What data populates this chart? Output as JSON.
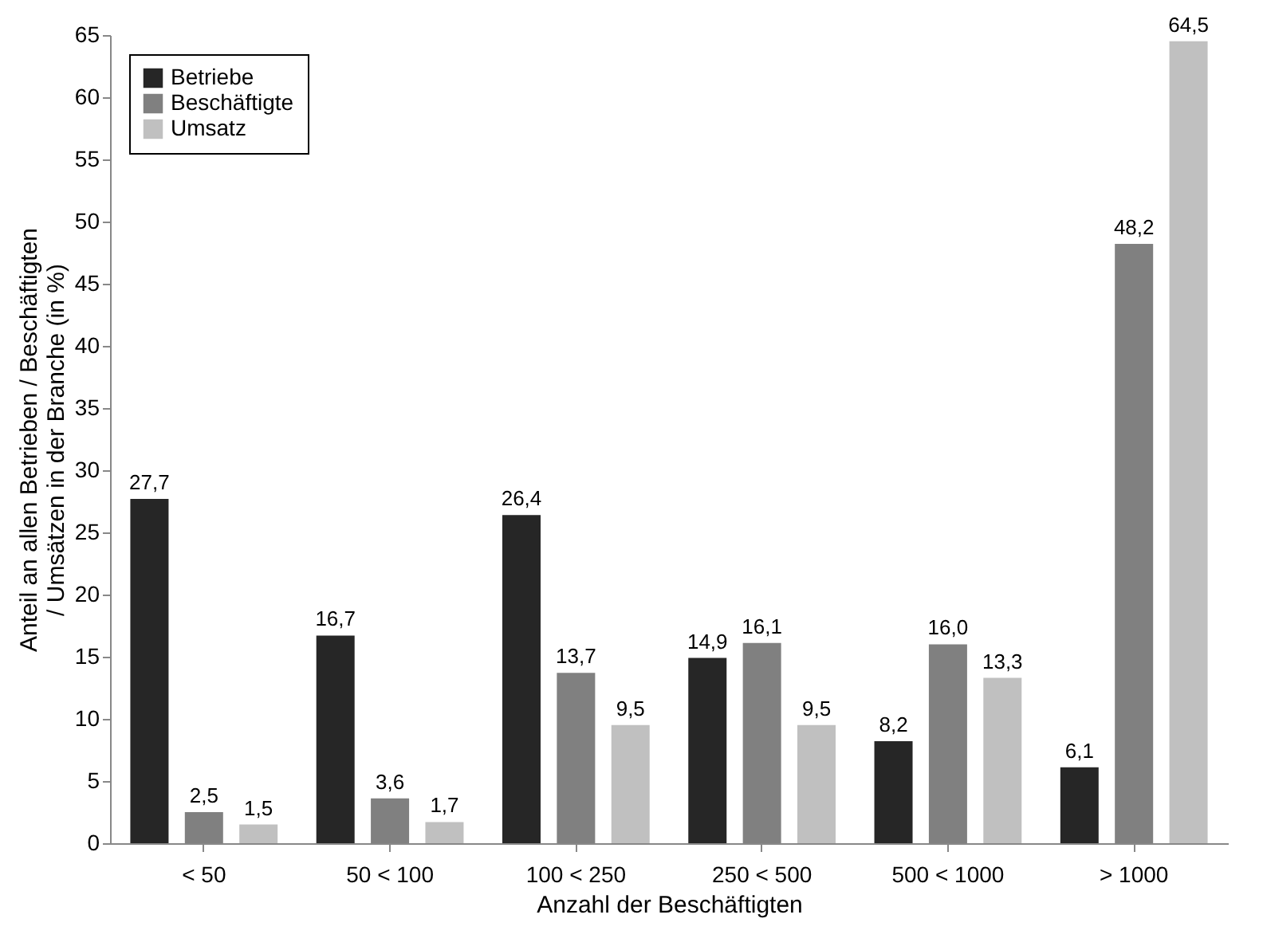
{
  "chart_data": {
    "type": "bar",
    "xlabel": "Anzahl der Beschäftigten",
    "ylabel": "Anteil an allen Betrieben / Beschäftigten / Umsätzen in der Branche (in %)",
    "categories": [
      "< 50",
      "50 < 100",
      "100 < 250",
      "250 < 500",
      "500 < 1000",
      "> 1000"
    ],
    "series": [
      {
        "name": "Betriebe",
        "color": "#262626",
        "values": [
          27.7,
          16.7,
          26.4,
          14.9,
          8.2,
          6.1
        ],
        "value_labels": [
          "27,7",
          "16,7",
          "26,4",
          "14,9",
          "8,2",
          "6,1"
        ]
      },
      {
        "name": "Beschäftigte",
        "color": "#808080",
        "values": [
          2.5,
          3.6,
          13.7,
          16.1,
          16.0,
          48.2
        ],
        "value_labels": [
          "2,5",
          "3,6",
          "13,7",
          "16,1",
          "16,0",
          "48,2"
        ]
      },
      {
        "name": "Umsatz",
        "color": "#c0c0c0",
        "values": [
          1.5,
          1.7,
          9.5,
          9.5,
          13.3,
          64.5
        ],
        "value_labels": [
          "1,5",
          "1,7",
          "9,5",
          "9,5",
          "13,3",
          "64,5"
        ]
      }
    ],
    "ylim": [
      0,
      65
    ],
    "yticks": [
      0,
      5,
      10,
      15,
      20,
      25,
      30,
      35,
      40,
      45,
      50,
      55,
      60,
      65
    ],
    "grid": false,
    "legend": "top left"
  }
}
